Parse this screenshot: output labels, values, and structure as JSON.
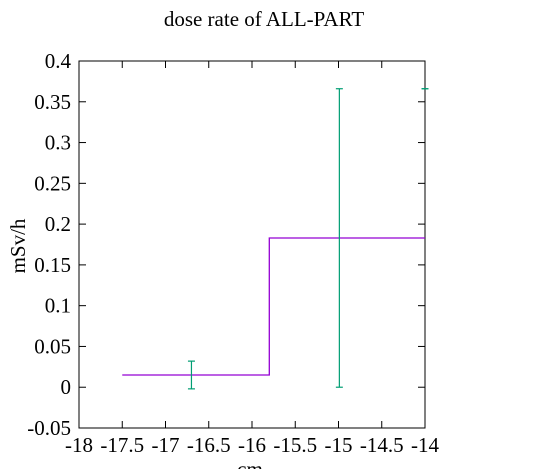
{
  "chart_data": {
    "type": "line",
    "title": "dose rate of ALL-PART",
    "xlabel": "cm",
    "ylabel": "mSv/h",
    "xlim": [
      -18,
      -14
    ],
    "ylim": [
      -0.05,
      0.4
    ],
    "x_ticks": [
      -18,
      -17.5,
      -17,
      -16.5,
      -16,
      -15.5,
      -15,
      -14.5,
      -14
    ],
    "x_tick_labels": [
      "-18",
      "-17.5",
      "-17",
      "-16.5",
      "-16",
      "-15.5",
      "-15",
      "-14.5",
      "-14"
    ],
    "y_ticks": [
      -0.05,
      0,
      0.05,
      0.1,
      0.15,
      0.2,
      0.25,
      0.3,
      0.35,
      0.4
    ],
    "y_tick_labels": [
      "-0.05",
      "0",
      "0.05",
      "0.1",
      "0.15",
      "0.2",
      "0.25",
      "0.3",
      "0.35",
      "0.4"
    ],
    "grid": false,
    "series": [
      {
        "style": "step",
        "color": "#9400d3",
        "points": [
          {
            "x": -17.5,
            "y": 0.015
          },
          {
            "x": -15.8,
            "y": 0.015
          },
          {
            "x": -15.8,
            "y": 0.183
          },
          {
            "x": -14.0,
            "y": 0.183
          }
        ]
      },
      {
        "style": "errorbars",
        "color": "#009e73",
        "points": [
          {
            "x": -16.7,
            "y": 0.015,
            "ylow": -0.002,
            "yhigh": 0.032
          },
          {
            "x": -14.99,
            "y": 0.183,
            "ylow": 0.0,
            "yhigh": 0.366
          },
          {
            "x": -14.0,
            "y": 0.366,
            "ylow": 0.366,
            "yhigh": 0.366
          }
        ]
      }
    ]
  }
}
